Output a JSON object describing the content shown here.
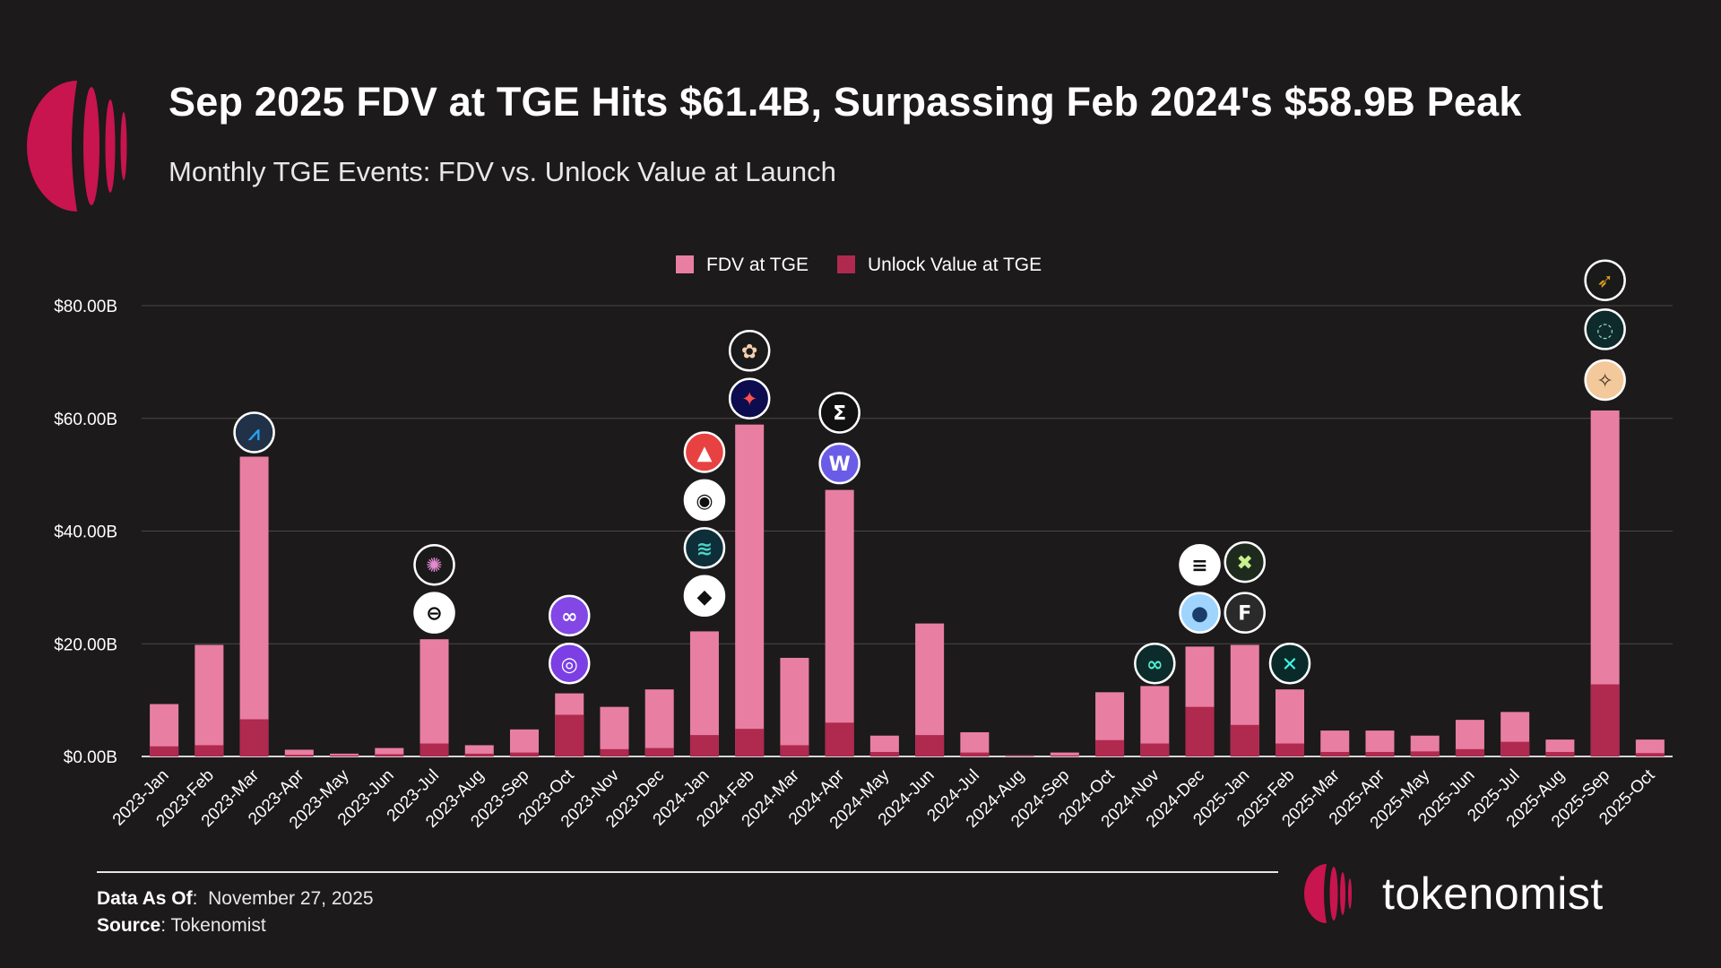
{
  "header": {
    "title": "Sep 2025 FDV at TGE Hits $61.4B, Surpassing Feb 2024's $58.9B Peak",
    "subtitle": "Monthly TGE Events: FDV vs. Unlock Value at Launch"
  },
  "footer": {
    "data_as_of_label": "Data As Of",
    "data_as_of_value": "November 27, 2025",
    "source_label": "Source",
    "source_value": "Tokenomist"
  },
  "brand": {
    "logo_text": "tokenomist",
    "accent": "#c8144f"
  },
  "colors": {
    "fdv": "#e87fa2",
    "unlock": "#b0294f",
    "background": "#1c1a1b",
    "grid": "#4a4748",
    "text": "#ffffff"
  },
  "chart_data": {
    "type": "bar",
    "stacked": true,
    "title": "Sep 2025 FDV at TGE Hits $61.4B, Surpassing Feb 2024's $58.9B Peak",
    "subtitle": "Monthly TGE Events: FDV vs. Unlock Value at Launch",
    "xlabel": "",
    "ylabel": "",
    "ylim": [
      0,
      80
    ],
    "y_ticks": [
      0,
      20,
      40,
      60,
      80
    ],
    "y_tick_labels": [
      "$0.00B",
      "$20.00B",
      "$40.00B",
      "$60.00B",
      "$80.00B"
    ],
    "legend_position": "top-center",
    "grid": true,
    "categories": [
      "2023-Jan",
      "2023-Feb",
      "2023-Mar",
      "2023-Apr",
      "2023-May",
      "2023-Jun",
      "2023-Jul",
      "2023-Aug",
      "2023-Sep",
      "2023-Oct",
      "2023-Nov",
      "2023-Dec",
      "2024-Jan",
      "2024-Feb",
      "2024-Mar",
      "2024-Apr",
      "2024-May",
      "2024-Jun",
      "2024-Jul",
      "2024-Aug",
      "2024-Sep",
      "2024-Oct",
      "2024-Nov",
      "2024-Dec",
      "2025-Jan",
      "2025-Feb",
      "2025-Mar",
      "2025-Apr",
      "2025-May",
      "2025-Jun",
      "2025-Jul",
      "2025-Aug",
      "2025-Sep",
      "2025-Oct"
    ],
    "series": [
      {
        "name": "FDV at TGE",
        "values": [
          9.3,
          19.8,
          53.2,
          1.2,
          0.5,
          1.5,
          20.8,
          2.0,
          4.8,
          11.2,
          8.8,
          11.9,
          22.2,
          58.9,
          17.5,
          47.3,
          3.7,
          23.6,
          4.3,
          0.2,
          0.7,
          11.4,
          12.5,
          19.5,
          19.8,
          11.9,
          4.6,
          4.6,
          3.7,
          6.5,
          7.9,
          3.0,
          61.4,
          3.0
        ]
      },
      {
        "name": "Unlock Value at TGE",
        "values": [
          1.8,
          2.0,
          6.6,
          0.3,
          0.2,
          0.4,
          2.3,
          0.5,
          0.7,
          7.4,
          1.3,
          1.5,
          3.8,
          4.9,
          2.0,
          6.0,
          0.8,
          3.8,
          0.7,
          0.1,
          0.2,
          2.9,
          2.3,
          8.8,
          5.6,
          2.3,
          0.8,
          0.8,
          0.9,
          1.3,
          2.6,
          0.8,
          12.8,
          0.6
        ]
      }
    ],
    "annotations": [
      {
        "category": "2023-Mar",
        "value": 57.5,
        "icon": "arbitrum-icon",
        "bg": "#213147",
        "fg": "#28a0f0",
        "glyph": "⩘"
      },
      {
        "category": "2023-Jul",
        "value": 34.0,
        "icon": "worldcoin-sunburst-icon",
        "bg": "#1a1a1a",
        "fg": "#e48bd0",
        "glyph": "✺"
      },
      {
        "category": "2023-Jul",
        "value": 25.5,
        "icon": "worldcoin-icon",
        "bg": "#ffffff",
        "fg": "#000000",
        "glyph": "⊖"
      },
      {
        "category": "2023-Oct",
        "value": 25.0,
        "icon": "polygon-icon",
        "bg": "#8247e5",
        "fg": "#ffffff",
        "glyph": "∞"
      },
      {
        "category": "2023-Oct",
        "value": 16.5,
        "icon": "sphere-icon",
        "bg": "#7b3fe4",
        "fg": "#ffffff",
        "glyph": "◎"
      },
      {
        "category": "2024-Jan",
        "value": 54.0,
        "icon": "avalanche-style-icon",
        "bg": "#e84142",
        "fg": "#ffffff",
        "glyph": "▲"
      },
      {
        "category": "2024-Jan",
        "value": 45.5,
        "icon": "spiral-icon",
        "bg": "#ffffff",
        "fg": "#111111",
        "glyph": "◉"
      },
      {
        "category": "2024-Jan",
        "value": 37.0,
        "icon": "wave-icon",
        "bg": "#0e2f3a",
        "fg": "#4fd1c5",
        "glyph": "≋"
      },
      {
        "category": "2024-Jan",
        "value": 28.5,
        "icon": "diamond-icon",
        "bg": "#ffffff",
        "fg": "#111111",
        "glyph": "◆"
      },
      {
        "category": "2024-Feb",
        "value": 72.0,
        "icon": "flower-icon",
        "bg": "#1a1a1a",
        "fg": "#f5d0b0",
        "glyph": "✿"
      },
      {
        "category": "2024-Feb",
        "value": 63.5,
        "icon": "starknet-icon",
        "bg": "#0c0c4f",
        "fg": "#ff4f4f",
        "glyph": "✦"
      },
      {
        "category": "2024-Apr",
        "value": 61.0,
        "icon": "ethena-icon",
        "bg": "#111111",
        "fg": "#ffffff",
        "glyph": "Σ"
      },
      {
        "category": "2024-Apr",
        "value": 52.0,
        "icon": "wormhole-icon",
        "bg": "#6b5ce7",
        "fg": "#ffffff",
        "glyph": "W"
      },
      {
        "category": "2024-Nov",
        "value": 16.5,
        "icon": "infinity-icon",
        "bg": "#0d2b2b",
        "fg": "#4ff0d0",
        "glyph": "∞"
      },
      {
        "category": "2024-Dec",
        "value": 34.0,
        "icon": "speed-lines-icon",
        "bg": "#ffffff",
        "fg": "#111111",
        "glyph": "≡"
      },
      {
        "category": "2024-Dec",
        "value": 25.5,
        "icon": "penguin-icon",
        "bg": "#9fd4ff",
        "fg": "#1a3d6b",
        "glyph": "●"
      },
      {
        "category": "2025-Jan",
        "value": 34.5,
        "icon": "cross-icon",
        "bg": "#1f2a1f",
        "fg": "#c8f08c",
        "glyph": "✖"
      },
      {
        "category": "2025-Jan",
        "value": 25.5,
        "icon": "fight-icon",
        "bg": "#2a2a2a",
        "fg": "#ffffff",
        "glyph": "F"
      },
      {
        "category": "2025-Feb",
        "value": 16.5,
        "icon": "grid-x-icon",
        "bg": "#0a2a2a",
        "fg": "#3ff5e0",
        "glyph": "✕"
      },
      {
        "category": "2025-Sep",
        "value": 84.5,
        "icon": "bird-icon",
        "bg": "#1a1a1a",
        "fg": "#e0a020",
        "glyph": "➶"
      },
      {
        "category": "2025-Sep",
        "value": 75.8,
        "icon": "ring-icon",
        "bg": "#0e2a2a",
        "fg": "#8fd8c8",
        "glyph": "◌"
      },
      {
        "category": "2025-Sep",
        "value": 66.8,
        "icon": "compass-icon",
        "bg": "#f3c89b",
        "fg": "#3a2a1a",
        "glyph": "✧"
      }
    ]
  }
}
